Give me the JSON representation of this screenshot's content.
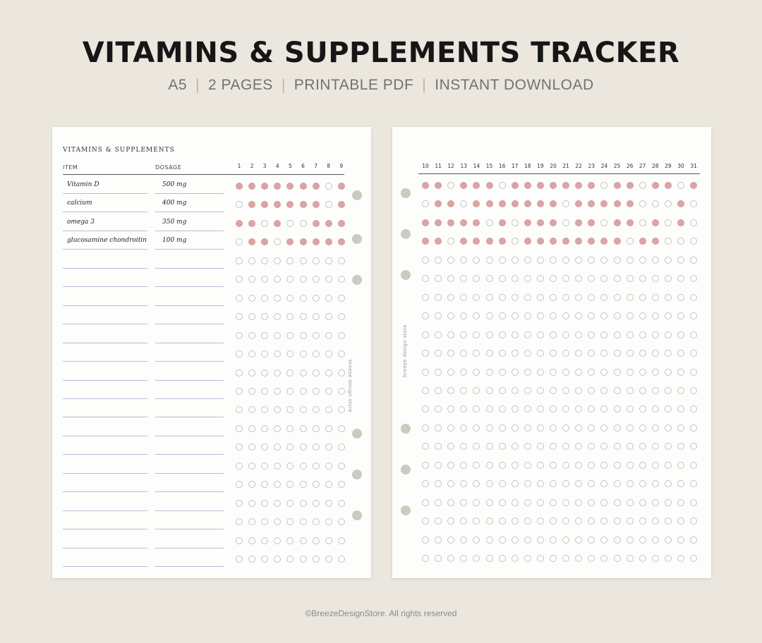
{
  "header": {
    "title": "VITAMINS & SUPPLEMENTS TRACKER",
    "tags": [
      "A5",
      "2 PAGES",
      "PRINTABLE PDF",
      "INSTANT DOWNLOAD"
    ]
  },
  "left_page": {
    "title": "VITAMINS & SUPPLEMENTS",
    "col_item": "ITEM",
    "col_dosage": "DOSAGE",
    "days": [
      1,
      2,
      3,
      4,
      5,
      6,
      7,
      8,
      9
    ],
    "vertical_label": "breeze design store"
  },
  "right_page": {
    "days": [
      10,
      11,
      12,
      13,
      14,
      15,
      16,
      17,
      18,
      19,
      20,
      21,
      22,
      23,
      24,
      25,
      26,
      27,
      28,
      29,
      30,
      31
    ],
    "vertical_label": "breeze design store"
  },
  "rows_total": 21,
  "entries": [
    {
      "item": "Vitamin D",
      "dosage": "500 mg",
      "left": [
        1,
        1,
        1,
        1,
        1,
        1,
        1,
        0,
        1
      ],
      "right": [
        1,
        1,
        0,
        1,
        1,
        1,
        0,
        1,
        1,
        1,
        1,
        1,
        1,
        1,
        0,
        1,
        1,
        0,
        1,
        1,
        0,
        1
      ]
    },
    {
      "item": "calcium",
      "dosage": "400 mg",
      "left": [
        0,
        1,
        1,
        1,
        1,
        1,
        1,
        0,
        1
      ],
      "right": [
        0,
        1,
        1,
        0,
        1,
        1,
        1,
        1,
        1,
        1,
        1,
        0,
        1,
        1,
        1,
        1,
        1,
        0,
        0,
        0,
        1,
        0
      ]
    },
    {
      "item": "omega 3",
      "dosage": "350 mg",
      "left": [
        1,
        1,
        0,
        1,
        0,
        0,
        1,
        1,
        1
      ],
      "right": [
        1,
        1,
        1,
        1,
        1,
        0,
        1,
        0,
        1,
        1,
        1,
        0,
        1,
        1,
        0,
        1,
        1,
        0,
        1,
        0,
        1,
        0
      ]
    },
    {
      "item": "glucosamine chondroitin",
      "dosage": "100 mg",
      "left": [
        0,
        1,
        1,
        0,
        1,
        1,
        1,
        1,
        1
      ],
      "right": [
        1,
        1,
        0,
        1,
        1,
        1,
        1,
        0,
        1,
        1,
        1,
        1,
        1,
        1,
        1,
        1,
        0,
        1,
        1,
        0,
        0,
        0
      ]
    }
  ],
  "footer": "©BreezeDesignStore. All rights reserved",
  "colors": {
    "filled_dot": "#dca4a5",
    "empty_dot": "#c3c3c3",
    "background": "#ebe7de",
    "paper": "#fdfdfc"
  }
}
